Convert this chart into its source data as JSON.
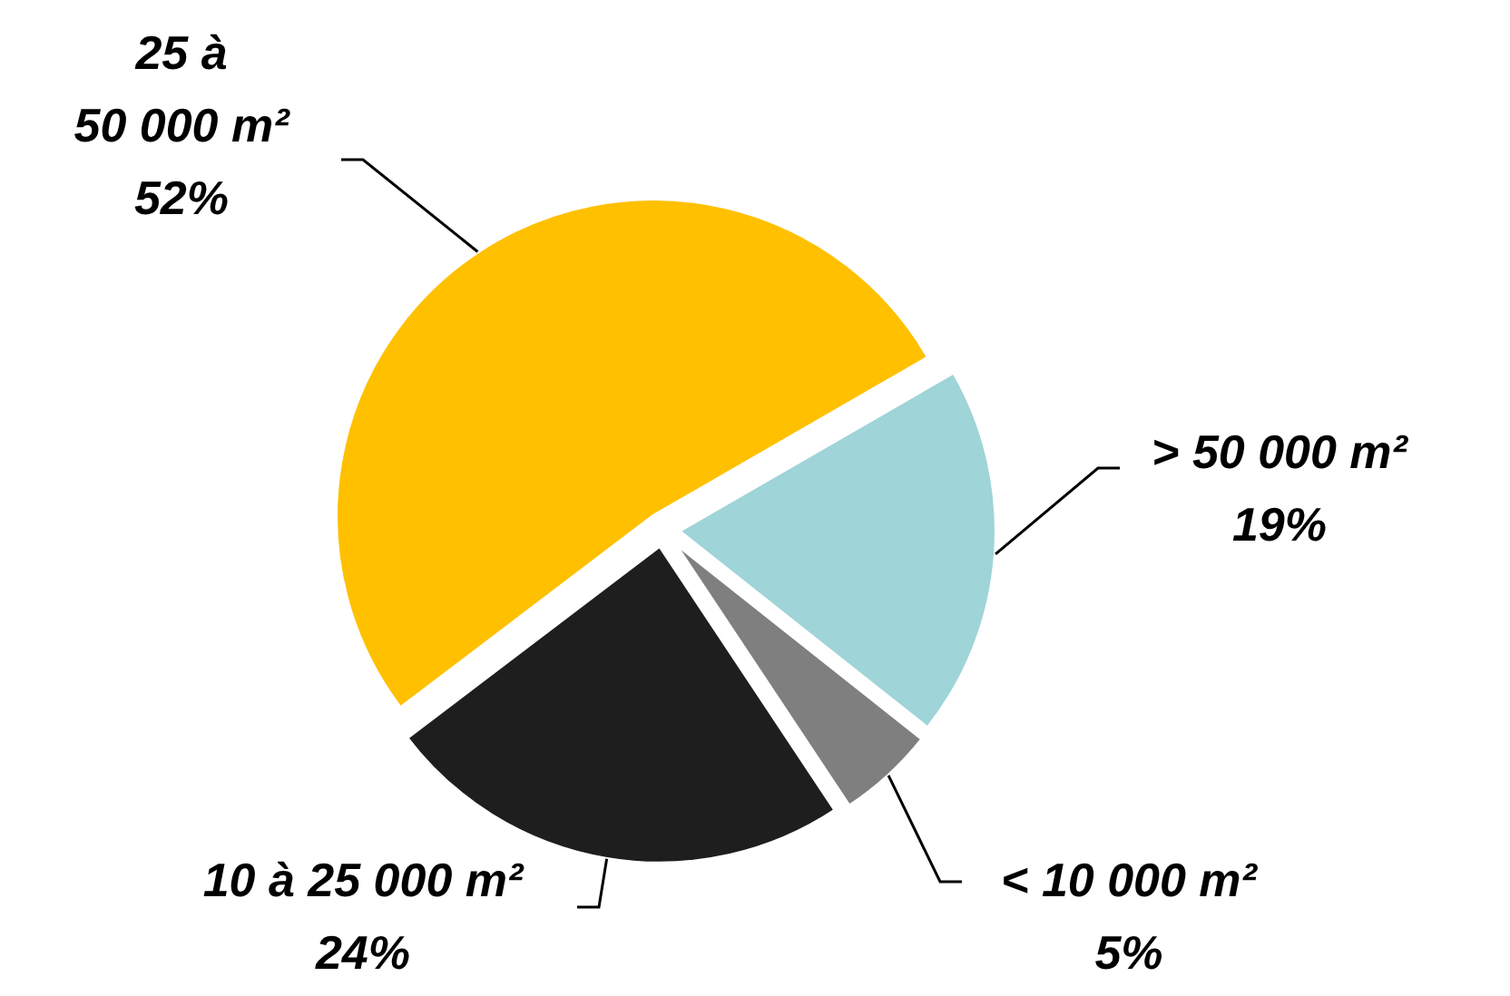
{
  "chart_data": {
    "type": "pie",
    "categories": [
      "> 50 000 m²",
      "< 10 000 m²",
      "10 à 25 000 m²",
      "25 à 50 000 m²"
    ],
    "values": [
      19,
      5,
      24,
      52
    ],
    "colors": [
      "#9fd4d8",
      "#7f7f7f",
      "#1e1e1e",
      "#ffc000"
    ],
    "value_labels": [
      "19%",
      "5%",
      "24%",
      "52%"
    ]
  }
}
